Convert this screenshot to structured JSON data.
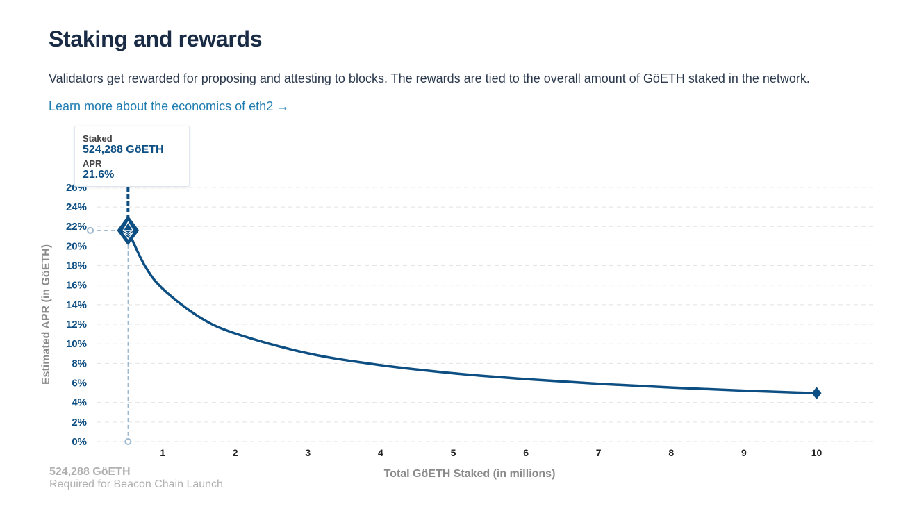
{
  "header": {
    "title": "Staking and rewards",
    "description": "Validators get rewarded for proposing and attesting to blocks. The rewards are tied to the overall amount of GöETH staked in the network.",
    "link_text": "Learn more about the economics of eth2 →"
  },
  "tooltip": {
    "staked_label": "Staked",
    "staked_value": "524,288 GöETH",
    "apr_label": "APR",
    "apr_value": "21.6%"
  },
  "footnote": {
    "amount": "524,288 GöETH",
    "caption": "Required for Beacon Chain Launch"
  },
  "colors": {
    "line": "#0e4f83",
    "grid": "#e3e3e3",
    "guide": "#9cb8cf",
    "ylabel": "#8a8a8a"
  },
  "chart_data": {
    "type": "line",
    "xlabel": "Total GöETH Staked  (in millions)",
    "ylabel": "Estimated APR (in GöETH)",
    "xlim": [
      0,
      10.8
    ],
    "ylim": [
      0,
      26
    ],
    "xticks": [
      "1",
      "2",
      "3",
      "4",
      "5",
      "6",
      "7",
      "8",
      "9",
      "10"
    ],
    "yticks": [
      "0%",
      "2%",
      "4%",
      "6%",
      "8%",
      "10%",
      "12%",
      "14%",
      "16%",
      "18%",
      "20%",
      "22%",
      "24%",
      "26%"
    ],
    "grid": "horizontal dashed",
    "highlight": {
      "x": 0.524288,
      "y": 21.6,
      "marker": "eth-diamond"
    },
    "x": [
      0.524288,
      0.75,
      1,
      1.5,
      2,
      3,
      4,
      5,
      6,
      7,
      8,
      9,
      10
    ],
    "y": [
      21.6,
      18.06,
      15.64,
      12.77,
      11.06,
      9.03,
      7.82,
      6.99,
      6.39,
      5.91,
      5.53,
      5.21,
      4.95
    ]
  }
}
